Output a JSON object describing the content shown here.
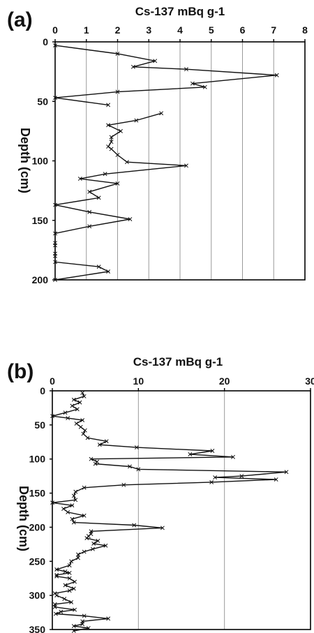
{
  "chart_data": [
    {
      "type": "line",
      "panel_label": "(a)",
      "title": "Cs-137 mBq g-1",
      "ylabel": "Depth (cm)",
      "xlim": [
        0,
        8
      ],
      "ylim": [
        0,
        200
      ],
      "y_inverted": true,
      "x_axis_position": "top",
      "xticks": [
        0,
        1,
        2,
        3,
        4,
        5,
        6,
        7,
        8
      ],
      "yticks": [
        0,
        50,
        100,
        150,
        200
      ],
      "grid": "vertical",
      "marker": "x",
      "series": [
        {
          "segments": [
            [
              [
                0,
                3
              ],
              [
                2,
                10
              ],
              [
                3.2,
                16
              ],
              [
                2.5,
                21
              ],
              [
                4.2,
                23
              ],
              [
                7.1,
                28
              ],
              [
                4.4,
                35
              ],
              [
                4.8,
                38
              ],
              [
                2,
                42
              ],
              [
                0,
                47
              ],
              [
                1.7,
                53
              ]
            ],
            [
              [
                3.4,
                60
              ],
              [
                2.6,
                66
              ],
              [
                1.7,
                70
              ],
              [
                2.1,
                75
              ],
              [
                1.8,
                80
              ],
              [
                1.8,
                84
              ],
              [
                1.7,
                88
              ],
              [
                1.8,
                90
              ],
              [
                2.0,
                95
              ],
              [
                2.3,
                101
              ],
              [
                4.2,
                104
              ],
              [
                1.6,
                111
              ],
              [
                0.8,
                115
              ],
              [
                2.0,
                119
              ],
              [
                1.1,
                126
              ],
              [
                1.4,
                131
              ],
              [
                0,
                137
              ],
              [
                1.1,
                143
              ],
              [
                2.4,
                149
              ],
              [
                1.1,
                155
              ],
              [
                0,
                161
              ],
              [
                0,
                169
              ],
              [
                0,
                171
              ],
              [
                0,
                178
              ],
              [
                0,
                180
              ],
              [
                0,
                185
              ],
              [
                1.4,
                189
              ],
              [
                1.7,
                193
              ],
              [
                0,
                200
              ]
            ]
          ]
        }
      ]
    },
    {
      "type": "line",
      "panel_label": "(b)",
      "title": "Cs-137 mBq g-1",
      "ylabel": "Depth (cm)",
      "xlim": [
        0,
        30
      ],
      "ylim": [
        0,
        350
      ],
      "y_inverted": true,
      "x_axis_position": "top",
      "xticks": [
        0,
        10,
        20,
        30
      ],
      "xtick_labels": [
        "0",
        "10",
        "20",
        "30"
      ],
      "yticks": [
        0,
        50,
        100,
        150,
        200,
        250,
        300,
        350
      ],
      "grid": "vertical",
      "marker": "x",
      "series": [
        {
          "points": [
            [
              3.5,
              3
            ],
            [
              3.7,
              8
            ],
            [
              2.5,
              13
            ],
            [
              3.2,
              17
            ],
            [
              2.3,
              22
            ],
            [
              2.9,
              27
            ],
            [
              1.5,
              32
            ],
            [
              0,
              37
            ],
            [
              1.8,
              40
            ],
            [
              3.5,
              43
            ],
            [
              2.8,
              48
            ],
            [
              3.3,
              53
            ],
            [
              3.8,
              58
            ],
            [
              3.6,
              63
            ],
            [
              4.1,
              69
            ],
            [
              6.3,
              74
            ],
            [
              5.5,
              79
            ],
            [
              9.8,
              83
            ],
            [
              18.6,
              88
            ],
            [
              16.0,
              93
            ],
            [
              21.0,
              97
            ],
            [
              4.5,
              100
            ],
            [
              5.2,
              104
            ],
            [
              5.0,
              107
            ],
            [
              9.0,
              111
            ],
            [
              10.0,
              115
            ],
            [
              27.2,
              119
            ],
            [
              22.0,
              125
            ],
            [
              18.9,
              127
            ],
            [
              26.0,
              130
            ],
            [
              18.5,
              134
            ],
            [
              8.3,
              138
            ],
            [
              3.7,
              142
            ],
            [
              2.7,
              148
            ],
            [
              2.5,
              154
            ],
            [
              2.7,
              160
            ],
            [
              0,
              164
            ],
            [
              2.3,
              168
            ],
            [
              1.3,
              173
            ],
            [
              1.8,
              178
            ],
            [
              3.7,
              183
            ],
            [
              2.3,
              188
            ],
            [
              2.5,
              193
            ],
            [
              9.5,
              197
            ],
            [
              12.8,
              201
            ],
            [
              4.5,
              206
            ],
            [
              4.5,
              210
            ],
            [
              4.2,
              213
            ],
            [
              4.0,
              216
            ],
            [
              5.3,
              220
            ],
            [
              4.8,
              224
            ],
            [
              6.2,
              227
            ],
            [
              4.7,
              232
            ],
            [
              3.7,
              236
            ],
            [
              3.0,
              240
            ],
            [
              3.0,
              245
            ],
            [
              2.2,
              250
            ],
            [
              2.0,
              256
            ],
            [
              0.5,
              262
            ],
            [
              1.5,
              265
            ],
            [
              2.0,
              267
            ],
            [
              0.5,
              270
            ],
            [
              0.5,
              272
            ],
            [
              2.0,
              275
            ],
            [
              2.6,
              280
            ],
            [
              1.5,
              285
            ],
            [
              2.5,
              290
            ],
            [
              2.0,
              293
            ],
            [
              0.3,
              297
            ],
            [
              0.5,
              300
            ],
            [
              1.4,
              305
            ],
            [
              2.2,
              310
            ],
            [
              0.3,
              313
            ],
            [
              0.3,
              317
            ],
            [
              2.6,
              321
            ],
            [
              1.0,
              324
            ],
            [
              0.4,
              327
            ],
            [
              3.7,
              330
            ],
            [
              6.5,
              334
            ],
            [
              3.5,
              338
            ],
            [
              3.5,
              342
            ],
            [
              2.5,
              345
            ],
            [
              4.2,
              348
            ],
            [
              2.5,
              352
            ]
          ]
        }
      ]
    }
  ]
}
